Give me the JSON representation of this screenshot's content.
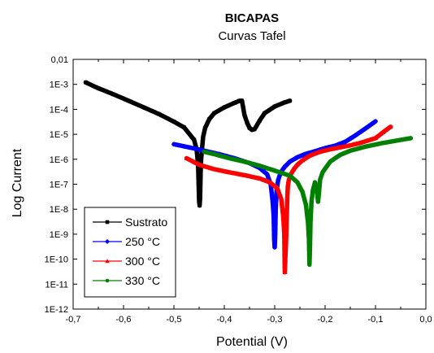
{
  "chart_data": {
    "type": "line",
    "title": "BICAPAS",
    "subtitle": "Curvas Tafel",
    "xlabel": "Potential (V)",
    "ylabel": "Log Current",
    "xlim": [
      -0.7,
      0.0
    ],
    "ylim": [
      1e-12,
      0.01
    ],
    "yscale": "log",
    "x_ticks": [
      -0.7,
      -0.6,
      -0.5,
      -0.4,
      -0.3,
      -0.2,
      -0.1,
      0.0
    ],
    "x_tick_labels": [
      "-0,7",
      "-0,6",
      "-0,5",
      "-0,4",
      "-0,3",
      "-0,2",
      "-0,1",
      "0,0"
    ],
    "y_ticks": [
      1e-12,
      1e-11,
      1e-10,
      1e-09,
      1e-08,
      1e-07,
      1e-06,
      1e-05,
      0.0001,
      0.001,
      0.01
    ],
    "y_tick_labels": [
      "1E-12",
      "1E-11",
      "1E-10",
      "1E-9",
      "1E-8",
      "1E-7",
      "1E-6",
      "1E-5",
      "1E-4",
      "1E-3",
      "0,01"
    ],
    "grid": false,
    "legend_position": "bottom-left",
    "series": [
      {
        "name": "Sustrato",
        "color": "#000000",
        "marker": "square",
        "x": [
          -0.675,
          -0.65,
          -0.62,
          -0.59,
          -0.56,
          -0.53,
          -0.5,
          -0.48,
          -0.46,
          -0.455,
          -0.452,
          -0.45,
          -0.449,
          -0.448,
          -0.447,
          -0.446,
          -0.444,
          -0.442,
          -0.438,
          -0.43,
          -0.42,
          -0.4,
          -0.38,
          -0.37,
          -0.365,
          -0.36,
          -0.355,
          -0.35,
          -0.345,
          -0.34,
          -0.33,
          -0.32,
          -0.3,
          -0.28,
          -0.27
        ],
        "y": [
          0.0012,
          0.0007,
          0.0004,
          0.00022,
          0.00012,
          6.5e-05,
          3.2e-05,
          1.9e-05,
          6e-06,
          2.5e-06,
          6e-07,
          2e-08,
          1.4e-08,
          3e-08,
          3e-07,
          1e-06,
          3e-06,
          8e-06,
          1.8e-05,
          4e-05,
          7e-05,
          0.00012,
          0.00018,
          0.00022,
          0.00022,
          6e-05,
          3e-05,
          1.8e-05,
          1.5e-05,
          1.6e-05,
          3.5e-05,
          7e-05,
          0.00013,
          0.00019,
          0.00022
        ]
      },
      {
        "name": "250 °C",
        "color": "#0000ff",
        "marker": "diamond",
        "x": [
          -0.5,
          -0.47,
          -0.44,
          -0.41,
          -0.38,
          -0.35,
          -0.33,
          -0.315,
          -0.308,
          -0.304,
          -0.302,
          -0.301,
          -0.3,
          -0.299,
          -0.298,
          -0.296,
          -0.293,
          -0.288,
          -0.28,
          -0.27,
          -0.255,
          -0.24,
          -0.22,
          -0.2,
          -0.18,
          -0.16,
          -0.14,
          -0.12,
          -0.1
        ],
        "y": [
          4e-06,
          3e-06,
          2.2e-06,
          1.6e-06,
          1.1e-06,
          7e-07,
          4.5e-07,
          2.5e-07,
          1e-07,
          2e-08,
          5e-09,
          6e-10,
          3e-10,
          1e-09,
          1e-08,
          6e-08,
          1.5e-07,
          3e-07,
          5e-07,
          8e-07,
          1.2e-06,
          1.6e-06,
          2.1e-06,
          2.8e-06,
          3.5e-06,
          5e-06,
          9e-06,
          1.7e-05,
          3.3e-05
        ]
      },
      {
        "name": "300 °C",
        "color": "#ff0000",
        "marker": "triangle",
        "x": [
          -0.475,
          -0.45,
          -0.42,
          -0.39,
          -0.36,
          -0.33,
          -0.31,
          -0.295,
          -0.287,
          -0.283,
          -0.281,
          -0.28,
          -0.279,
          -0.278,
          -0.277,
          -0.276,
          -0.275,
          -0.274,
          -0.272,
          -0.268,
          -0.262,
          -0.255,
          -0.245,
          -0.23,
          -0.21,
          -0.19,
          -0.17,
          -0.15,
          -0.13,
          -0.1,
          -0.085,
          -0.07
        ],
        "y": [
          1.1e-06,
          6e-07,
          4e-07,
          3e-07,
          2.3e-07,
          1.7e-07,
          1.2e-07,
          7e-08,
          2.5e-08,
          5e-09,
          1e-09,
          3e-11,
          1e-10,
          3e-10,
          1e-09,
          6e-09,
          3e-08,
          8e-08,
          1.5e-07,
          2.5e-07,
          4e-07,
          6e-07,
          9e-07,
          1.4e-06,
          2e-06,
          2.5e-06,
          3e-06,
          3.6e-06,
          4.5e-06,
          7e-06,
          1.2e-05,
          2e-05
        ]
      },
      {
        "name": "330 °C",
        "color": "#008000",
        "marker": "circle",
        "x": [
          -0.44,
          -0.42,
          -0.39,
          -0.36,
          -0.33,
          -0.3,
          -0.27,
          -0.255,
          -0.245,
          -0.238,
          -0.234,
          -0.232,
          -0.231,
          -0.23,
          -0.229,
          -0.227,
          -0.224,
          -0.22,
          -0.216,
          -0.214,
          -0.212,
          -0.21,
          -0.205,
          -0.19,
          -0.17,
          -0.15,
          -0.12,
          -0.09,
          -0.06,
          -0.03
        ],
        "y": [
          2e-06,
          1.6e-06,
          1.1e-06,
          8e-07,
          5.5e-07,
          3.5e-07,
          2.2e-07,
          1.2e-07,
          5e-08,
          1.5e-08,
          3e-09,
          6e-10,
          6e-11,
          3e-10,
          3e-09,
          2e-08,
          6e-08,
          1.2e-07,
          5e-08,
          2e-08,
          5e-08,
          1.5e-07,
          3e-07,
          8e-07,
          1.5e-06,
          2.2e-06,
          3.2e-06,
          4.3e-06,
          5.5e-06,
          7e-06
        ]
      }
    ]
  }
}
